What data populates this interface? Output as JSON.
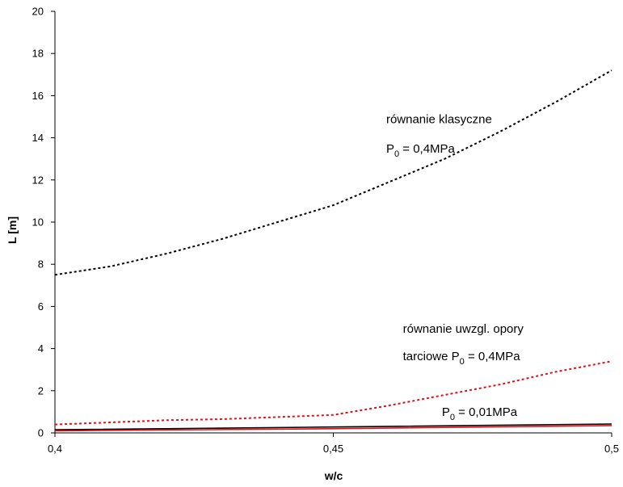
{
  "chart_data": {
    "type": "line",
    "xlabel": "w/c",
    "ylabel": "L [m]",
    "x": [
      0.4,
      0.45,
      0.5
    ],
    "x_tick_labels": [
      "0,4",
      "0,45",
      "0,5"
    ],
    "xlim": [
      0.4,
      0.5
    ],
    "ylim": [
      0,
      20
    ],
    "y_ticks": [
      0,
      2,
      4,
      6,
      8,
      10,
      12,
      14,
      16,
      18,
      20
    ],
    "grid": false,
    "series": [
      {
        "key": "classic",
        "style": "dotted",
        "color": "#000000",
        "points": [
          [
            0.4,
            7.5
          ],
          [
            0.41,
            7.9
          ],
          [
            0.42,
            8.5
          ],
          [
            0.43,
            9.2
          ],
          [
            0.44,
            10.0
          ],
          [
            0.45,
            10.8
          ],
          [
            0.46,
            11.9
          ],
          [
            0.47,
            13.0
          ],
          [
            0.48,
            14.3
          ],
          [
            0.49,
            15.7
          ],
          [
            0.5,
            17.2
          ]
        ]
      },
      {
        "key": "friction",
        "style": "dotted",
        "color": "#e0101a",
        "points": [
          [
            0.4,
            0.4
          ],
          [
            0.41,
            0.5
          ],
          [
            0.42,
            0.6
          ],
          [
            0.43,
            0.65
          ],
          [
            0.44,
            0.75
          ],
          [
            0.45,
            0.85
          ],
          [
            0.46,
            1.3
          ],
          [
            0.47,
            1.8
          ],
          [
            0.48,
            2.3
          ],
          [
            0.49,
            2.9
          ],
          [
            0.5,
            3.4
          ]
        ]
      },
      {
        "key": "low-pressure-black",
        "style": "solid",
        "color": "#000000",
        "points": [
          [
            0.4,
            0.15
          ],
          [
            0.45,
            0.28
          ],
          [
            0.5,
            0.42
          ]
        ]
      },
      {
        "key": "low-pressure-red",
        "style": "solid",
        "color": "#e0101a",
        "points": [
          [
            0.4,
            0.1
          ],
          [
            0.45,
            0.2
          ],
          [
            0.5,
            0.35
          ]
        ]
      }
    ],
    "annotations": [
      {
        "key": "classic-1",
        "text": "równanie klasyczne"
      },
      {
        "key": "classic-2",
        "prefix": "P",
        "sub": "0",
        "suffix": " = 0,4MPa"
      },
      {
        "key": "friction-1",
        "text": "równanie uwzgl. opory"
      },
      {
        "key": "friction-2",
        "prefix": "tarciowe P",
        "sub": "0",
        "suffix": " = 0,4MPa"
      },
      {
        "key": "low-pressure",
        "prefix": "P",
        "sub": "0",
        "suffix": " = 0,01MPa"
      }
    ]
  }
}
